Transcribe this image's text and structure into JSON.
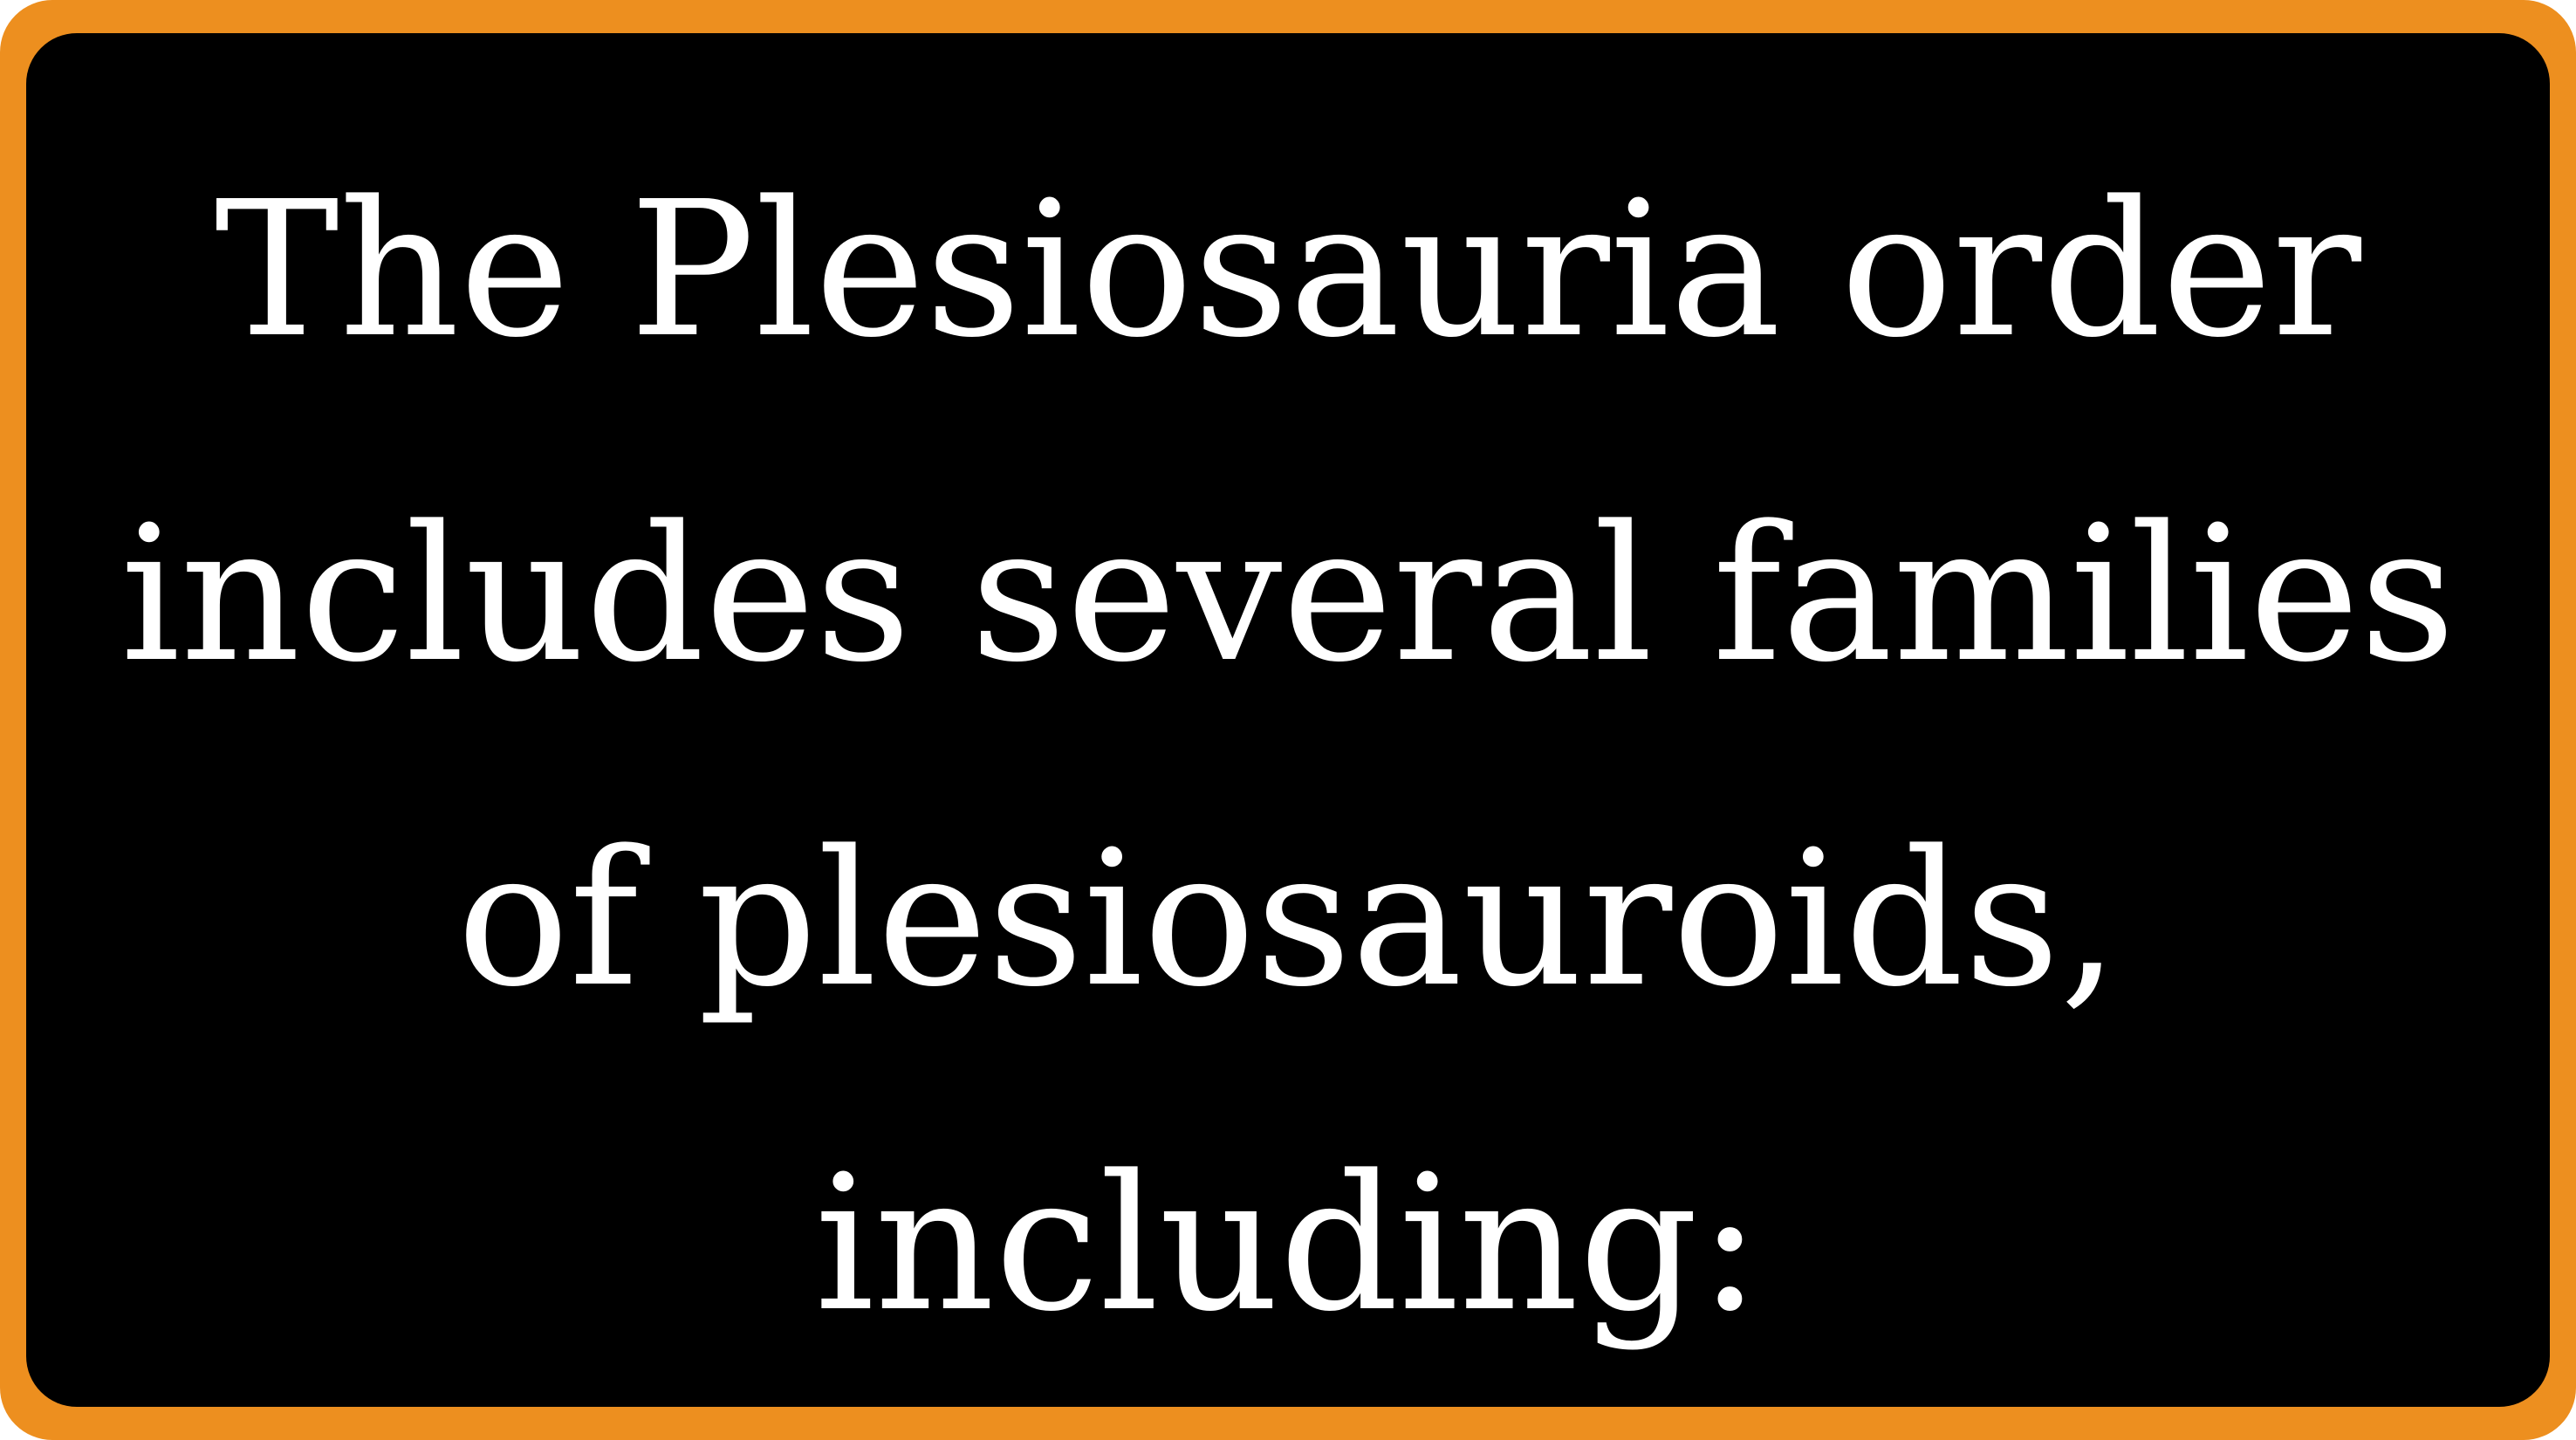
{
  "card": {
    "lines": [
      "The Plesiosauria order",
      "includes several families",
      "of plesiosauroids,",
      "including:"
    ]
  },
  "colors": {
    "border": "#ed8f1f",
    "background": "#000000",
    "text": "#ffffff"
  }
}
